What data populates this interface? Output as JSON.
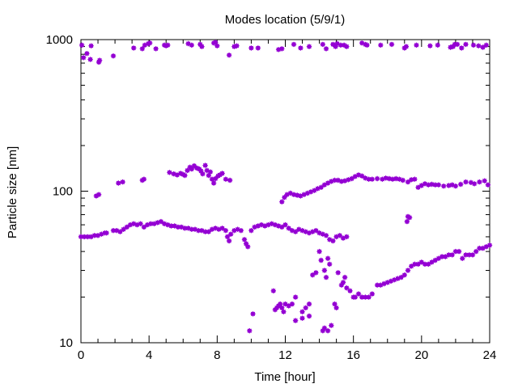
{
  "chart_data": {
    "type": "scatter",
    "title": "Modes location (5/9/1)",
    "xlabel": "Time [hour]",
    "ylabel": "Particle size [nm]",
    "xlim": [
      0,
      24
    ],
    "ylim": [
      10,
      1000
    ],
    "yscale": "log",
    "xticks": [
      0,
      4,
      8,
      12,
      16,
      20,
      24
    ],
    "xtick_labels": [
      "0",
      "4",
      "8",
      "12",
      "16",
      "20",
      "24"
    ],
    "yticks": [
      10,
      100,
      1000
    ],
    "ytick_labels": [
      "10",
      "100",
      "1000"
    ],
    "grid": false,
    "legend": "none",
    "marker_color": "#9400d3",
    "series": [
      {
        "mode": "upper",
        "points": [
          [
            0.05,
            920
          ],
          [
            0.15,
            760
          ],
          [
            0.35,
            810
          ],
          [
            0.55,
            740
          ],
          [
            0.6,
            910
          ],
          [
            1.05,
            710
          ],
          [
            1.1,
            730
          ],
          [
            1.9,
            780
          ],
          [
            3.1,
            880
          ],
          [
            3.6,
            870
          ],
          [
            3.75,
            920
          ],
          [
            3.95,
            940
          ],
          [
            4.05,
            950
          ],
          [
            4.4,
            870
          ],
          [
            4.9,
            920
          ],
          [
            5.0,
            910
          ],
          [
            5.1,
            920
          ],
          [
            6.3,
            940
          ],
          [
            6.5,
            920
          ],
          [
            7.0,
            930
          ],
          [
            7.1,
            900
          ],
          [
            7.8,
            950
          ],
          [
            7.9,
            960
          ],
          [
            8.0,
            910
          ],
          [
            8.7,
            790
          ],
          [
            9.0,
            900
          ],
          [
            9.15,
            910
          ],
          [
            10.0,
            880
          ],
          [
            10.4,
            880
          ],
          [
            11.6,
            860
          ],
          [
            11.8,
            870
          ],
          [
            12.5,
            930
          ],
          [
            12.9,
            880
          ],
          [
            13.4,
            900
          ],
          [
            14.2,
            930
          ],
          [
            14.4,
            870
          ],
          [
            14.8,
            930
          ],
          [
            14.95,
            900
          ],
          [
            15.05,
            940
          ],
          [
            15.25,
            920
          ],
          [
            15.45,
            920
          ],
          [
            15.6,
            900
          ],
          [
            16.5,
            950
          ],
          [
            16.7,
            930
          ],
          [
            16.8,
            920
          ],
          [
            17.6,
            920
          ],
          [
            18.25,
            930
          ],
          [
            19.0,
            880
          ],
          [
            19.1,
            900
          ],
          [
            19.7,
            920
          ],
          [
            20.5,
            910
          ],
          [
            20.95,
            920
          ],
          [
            21.7,
            890
          ],
          [
            21.85,
            900
          ],
          [
            21.95,
            930
          ],
          [
            22.1,
            930
          ],
          [
            22.35,
            880
          ],
          [
            22.6,
            930
          ],
          [
            23.05,
            920
          ],
          [
            23.35,
            910
          ],
          [
            23.6,
            890
          ],
          [
            23.8,
            920
          ]
        ]
      },
      {
        "mode": "middle",
        "points": [
          [
            0.9,
            93
          ],
          [
            1.05,
            95
          ],
          [
            2.2,
            113
          ],
          [
            2.45,
            115
          ],
          [
            3.6,
            118
          ],
          [
            3.7,
            120
          ],
          [
            5.2,
            133
          ],
          [
            5.45,
            130
          ],
          [
            5.65,
            128
          ],
          [
            5.85,
            131
          ],
          [
            6.0,
            129
          ],
          [
            6.1,
            127
          ],
          [
            6.25,
            137
          ],
          [
            6.4,
            144
          ],
          [
            6.5,
            140
          ],
          [
            6.65,
            147
          ],
          [
            6.8,
            142
          ],
          [
            6.95,
            140
          ],
          [
            7.05,
            136
          ],
          [
            7.15,
            130
          ],
          [
            7.3,
            148
          ],
          [
            7.4,
            137
          ],
          [
            7.5,
            127
          ],
          [
            7.6,
            134
          ],
          [
            7.7,
            120
          ],
          [
            7.8,
            113
          ],
          [
            7.9,
            121
          ],
          [
            8.05,
            126
          ],
          [
            8.15,
            128
          ],
          [
            8.3,
            131
          ],
          [
            8.5,
            120
          ],
          [
            8.75,
            118
          ],
          [
            11.8,
            85
          ],
          [
            11.95,
            91
          ],
          [
            12.1,
            95
          ],
          [
            12.3,
            97
          ],
          [
            12.5,
            95
          ],
          [
            12.7,
            94
          ],
          [
            12.9,
            93
          ],
          [
            13.1,
            95
          ],
          [
            13.3,
            97
          ],
          [
            13.5,
            99
          ],
          [
            13.7,
            101
          ],
          [
            13.9,
            104
          ],
          [
            14.1,
            106
          ],
          [
            14.3,
            110
          ],
          [
            14.5,
            113
          ],
          [
            14.7,
            116
          ],
          [
            14.9,
            118
          ],
          [
            15.1,
            118
          ],
          [
            15.3,
            116
          ],
          [
            15.5,
            117
          ],
          [
            15.7,
            119
          ],
          [
            15.9,
            121
          ],
          [
            16.1,
            125
          ],
          [
            16.3,
            128
          ],
          [
            16.5,
            126
          ],
          [
            16.7,
            122
          ],
          [
            16.9,
            120
          ],
          [
            17.1,
            120
          ],
          [
            17.4,
            121
          ],
          [
            17.7,
            120
          ],
          [
            17.9,
            122
          ],
          [
            18.1,
            121
          ],
          [
            18.3,
            120
          ],
          [
            18.5,
            121
          ],
          [
            18.7,
            120
          ],
          [
            18.9,
            118
          ],
          [
            19.2,
            115
          ],
          [
            19.4,
            119
          ],
          [
            19.6,
            120
          ],
          [
            19.8,
            106
          ],
          [
            20.0,
            109
          ],
          [
            20.2,
            112
          ],
          [
            20.4,
            110
          ],
          [
            20.6,
            111
          ],
          [
            20.8,
            110
          ],
          [
            21.0,
            110
          ],
          [
            21.3,
            108
          ],
          [
            21.6,
            109
          ],
          [
            21.8,
            110
          ],
          [
            22.0,
            108
          ],
          [
            22.3,
            111
          ],
          [
            22.6,
            115
          ],
          [
            22.9,
            114
          ],
          [
            23.1,
            112
          ],
          [
            23.4,
            115
          ],
          [
            23.7,
            117
          ],
          [
            23.9,
            110
          ],
          [
            19.3,
            67
          ],
          [
            19.15,
            63
          ],
          [
            19.2,
            68
          ]
        ]
      },
      {
        "mode": "lower",
        "points": [
          [
            0.0,
            50
          ],
          [
            0.2,
            50
          ],
          [
            0.4,
            50
          ],
          [
            0.6,
            50
          ],
          [
            0.8,
            51
          ],
          [
            1.0,
            51
          ],
          [
            1.2,
            52
          ],
          [
            1.4,
            53
          ],
          [
            1.5,
            53
          ],
          [
            1.9,
            55
          ],
          [
            2.1,
            55
          ],
          [
            2.3,
            54
          ],
          [
            2.5,
            56
          ],
          [
            2.7,
            58
          ],
          [
            2.9,
            60
          ],
          [
            3.1,
            61
          ],
          [
            3.3,
            60
          ],
          [
            3.5,
            61
          ],
          [
            3.7,
            58
          ],
          [
            3.9,
            60
          ],
          [
            4.1,
            61
          ],
          [
            4.3,
            61
          ],
          [
            4.5,
            62
          ],
          [
            4.7,
            63
          ],
          [
            4.9,
            61
          ],
          [
            5.1,
            60
          ],
          [
            5.3,
            59
          ],
          [
            5.5,
            59
          ],
          [
            5.7,
            58
          ],
          [
            5.9,
            58
          ],
          [
            6.1,
            57
          ],
          [
            6.3,
            57
          ],
          [
            6.5,
            56
          ],
          [
            6.7,
            56
          ],
          [
            6.9,
            55
          ],
          [
            7.1,
            55
          ],
          [
            7.3,
            54
          ],
          [
            7.5,
            54
          ],
          [
            7.7,
            56
          ],
          [
            7.9,
            57
          ],
          [
            8.1,
            56
          ],
          [
            8.3,
            57
          ],
          [
            8.5,
            55
          ],
          [
            8.6,
            50
          ],
          [
            8.7,
            47
          ],
          [
            8.8,
            52
          ],
          [
            9.0,
            55
          ],
          [
            9.2,
            56
          ],
          [
            9.4,
            55
          ],
          [
            9.6,
            48
          ],
          [
            9.7,
            45
          ],
          [
            9.8,
            43
          ],
          [
            10.0,
            55
          ],
          [
            10.2,
            58
          ],
          [
            10.4,
            59
          ],
          [
            10.6,
            60
          ],
          [
            10.8,
            59
          ],
          [
            11.0,
            60
          ],
          [
            11.2,
            61
          ],
          [
            11.4,
            60
          ],
          [
            11.6,
            59
          ],
          [
            11.8,
            58
          ],
          [
            12.0,
            60
          ],
          [
            12.2,
            57
          ],
          [
            12.4,
            55
          ],
          [
            12.6,
            54
          ],
          [
            12.8,
            56
          ],
          [
            13.0,
            55
          ],
          [
            13.2,
            54
          ],
          [
            13.4,
            53
          ],
          [
            13.6,
            54
          ],
          [
            13.8,
            55
          ],
          [
            14.0,
            53
          ],
          [
            14.2,
            52
          ],
          [
            14.4,
            51
          ],
          [
            14.6,
            48
          ],
          [
            14.8,
            47
          ],
          [
            15.0,
            50
          ],
          [
            15.2,
            51
          ],
          [
            15.4,
            49
          ],
          [
            15.6,
            50
          ],
          [
            11.3,
            22
          ],
          [
            11.4,
            16.5
          ],
          [
            11.5,
            17
          ],
          [
            11.6,
            17.5
          ],
          [
            11.7,
            18
          ],
          [
            11.8,
            17
          ],
          [
            11.9,
            16
          ],
          [
            12.0,
            18
          ],
          [
            12.2,
            17.5
          ],
          [
            12.4,
            18
          ],
          [
            12.6,
            20
          ],
          [
            13.0,
            16
          ],
          [
            13.2,
            17
          ],
          [
            13.4,
            18
          ],
          [
            13.6,
            28
          ],
          [
            13.8,
            29
          ],
          [
            14.0,
            40
          ],
          [
            14.1,
            35
          ],
          [
            14.3,
            30
          ],
          [
            14.4,
            27
          ],
          [
            14.5,
            36
          ],
          [
            14.6,
            33
          ],
          [
            14.2,
            12
          ],
          [
            14.3,
            12.5
          ],
          [
            14.5,
            12
          ],
          [
            14.7,
            13
          ],
          [
            14.9,
            18
          ],
          [
            15.0,
            17
          ],
          [
            15.1,
            29
          ],
          [
            15.3,
            24
          ],
          [
            15.4,
            25
          ],
          [
            15.5,
            27
          ],
          [
            15.6,
            23
          ],
          [
            15.8,
            22
          ],
          [
            16.0,
            20
          ],
          [
            16.1,
            20
          ],
          [
            16.3,
            21
          ],
          [
            16.5,
            20
          ],
          [
            16.7,
            20
          ],
          [
            16.9,
            20
          ],
          [
            17.1,
            21
          ],
          [
            12.6,
            14
          ],
          [
            13.0,
            14.5
          ],
          [
            13.4,
            15
          ],
          [
            9.9,
            12
          ],
          [
            10.1,
            15.5
          ],
          [
            17.4,
            24
          ],
          [
            17.6,
            24
          ],
          [
            17.8,
            24.5
          ],
          [
            18.0,
            25
          ],
          [
            18.2,
            25.5
          ],
          [
            18.4,
            26
          ],
          [
            18.6,
            26.5
          ],
          [
            18.8,
            27
          ],
          [
            19.0,
            28
          ],
          [
            19.2,
            30
          ],
          [
            19.4,
            32
          ],
          [
            19.6,
            33
          ],
          [
            19.8,
            33
          ],
          [
            20.0,
            34
          ],
          [
            20.2,
            33
          ],
          [
            20.4,
            33
          ],
          [
            20.6,
            34
          ],
          [
            20.8,
            35
          ],
          [
            21.0,
            36
          ],
          [
            21.2,
            37
          ],
          [
            21.4,
            37
          ],
          [
            21.6,
            38
          ],
          [
            21.8,
            38
          ],
          [
            22.0,
            40
          ],
          [
            22.2,
            40
          ],
          [
            22.4,
            36
          ],
          [
            22.6,
            38
          ],
          [
            22.8,
            38
          ],
          [
            23.0,
            38
          ],
          [
            23.2,
            40
          ],
          [
            23.4,
            42
          ],
          [
            23.6,
            42
          ],
          [
            23.8,
            43
          ],
          [
            24.0,
            44
          ]
        ]
      }
    ]
  }
}
